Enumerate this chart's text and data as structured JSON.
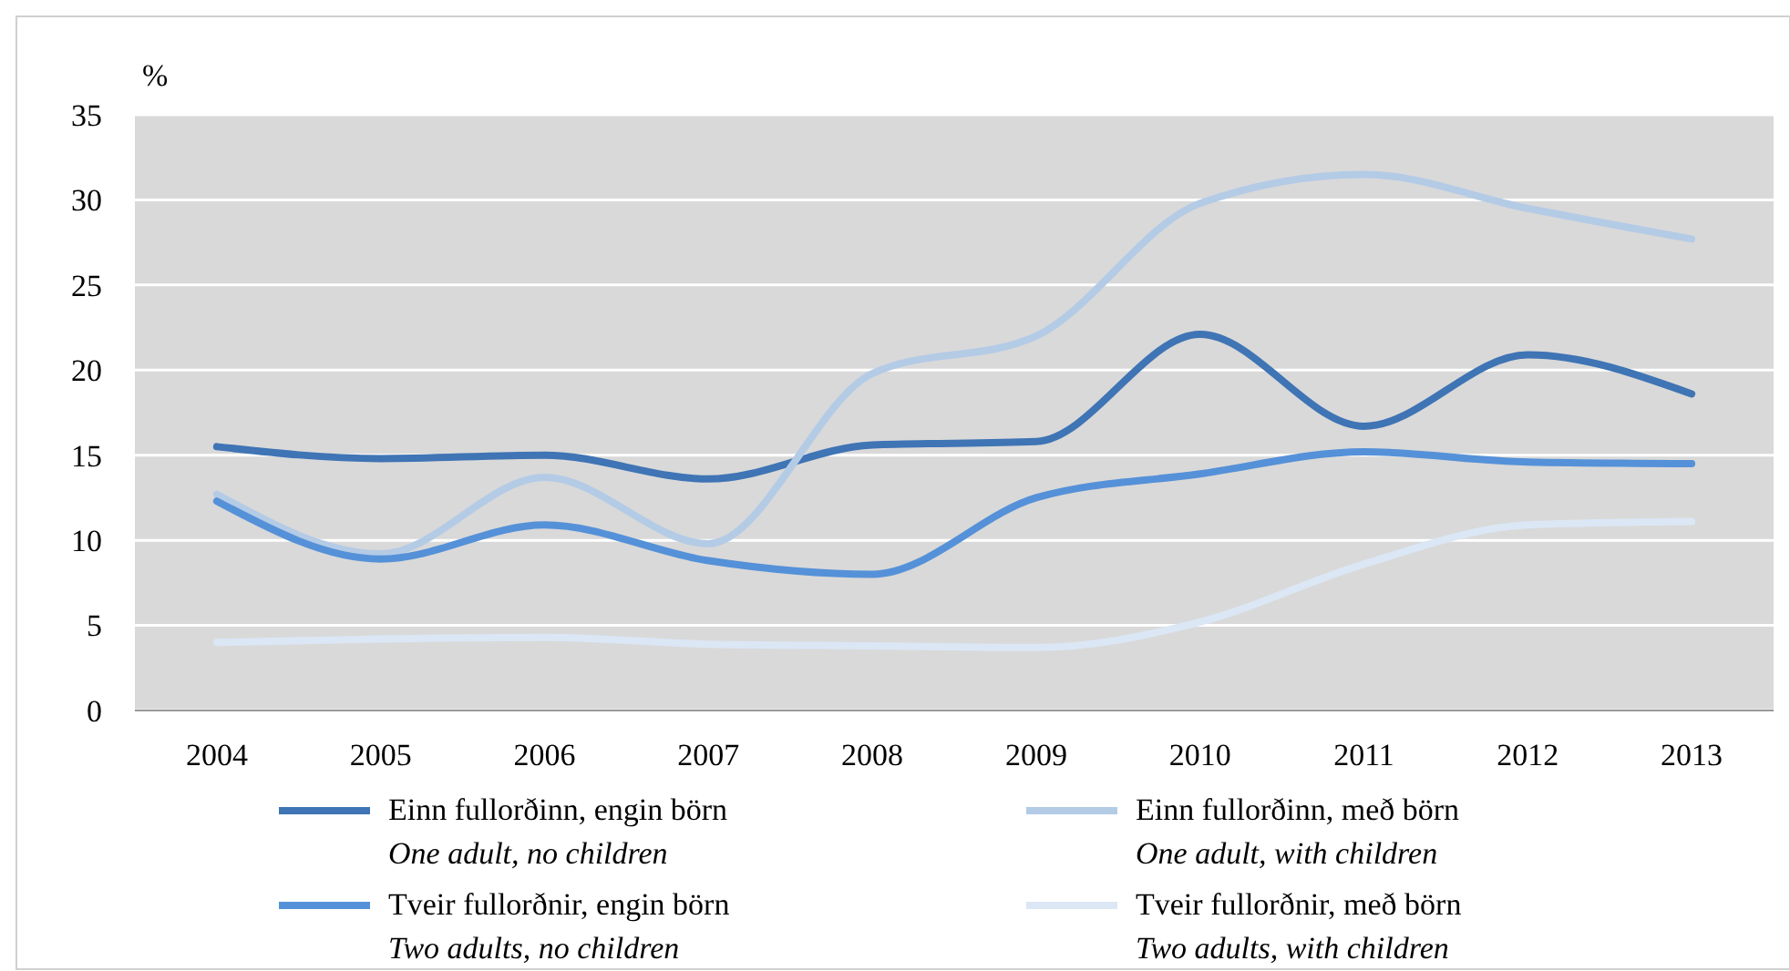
{
  "chart_data": {
    "type": "line",
    "ylabel": "%",
    "categories": [
      "2004",
      "2005",
      "2006",
      "2007",
      "2008",
      "2009",
      "2010",
      "2011",
      "2012",
      "2013"
    ],
    "ylim": [
      0,
      35
    ],
    "yticks": [
      0,
      5,
      10,
      15,
      20,
      25,
      30,
      35
    ],
    "grid": "y",
    "legend": "bottom",
    "marker": "none",
    "line_style": "solid",
    "series": [
      {
        "name": "Einn fullorðinn, engin börn\nOne adult, no children",
        "color": "#3f74b5",
        "values": [
          15.5,
          14.8,
          15.0,
          13.6,
          15.6,
          15.8,
          22.1,
          16.7,
          20.9,
          18.6
        ]
      },
      {
        "name": "Einn fullorðinn, með börn\nOne adult, with children",
        "color": "#b4cbe6",
        "values": [
          12.7,
          9.2,
          13.7,
          9.8,
          19.8,
          22.0,
          29.8,
          31.5,
          29.5,
          27.7
        ]
      },
      {
        "name": "Tveir fullorðnir, engin börn\nTwo adults, no children",
        "color": "#5591d8",
        "values": [
          12.3,
          8.9,
          10.9,
          8.8,
          8.0,
          12.5,
          13.9,
          15.2,
          14.6,
          14.5
        ]
      },
      {
        "name": "Tveir fullorðnir, með börn\nTwo adults, with children",
        "color": "#dbe7f5",
        "values": [
          4.0,
          4.2,
          4.3,
          3.9,
          3.8,
          3.7,
          5.2,
          8.6,
          10.9,
          11.1
        ]
      }
    ]
  }
}
